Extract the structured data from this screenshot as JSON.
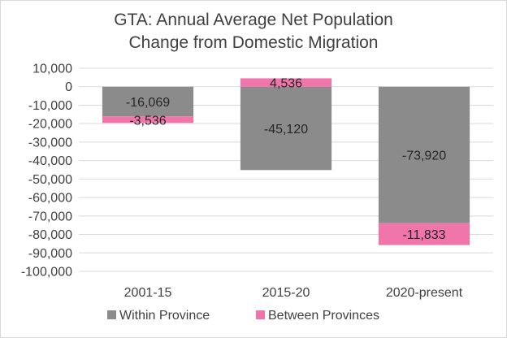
{
  "chart_data": {
    "type": "bar",
    "stacked": true,
    "title": "GTA: Annual Average Net Population Change from Domestic Migration",
    "title_lines": [
      "GTA: Annual Average Net Population",
      "Change from Domestic Migration"
    ],
    "categories": [
      "2001-15",
      "2015-20",
      "2020-present"
    ],
    "series": [
      {
        "name": "Within Province",
        "values": [
          -16069,
          -45120,
          -73920
        ],
        "labels": [
          "-16,069",
          "-45,120",
          "-73,920"
        ],
        "color": "#8c8b8b"
      },
      {
        "name": "Between Provinces",
        "values": [
          -3536,
          4536,
          -11833
        ],
        "labels": [
          "-3,536",
          "4,536",
          "-11,833"
        ],
        "color": "#f075aa"
      }
    ],
    "ylim": [
      -100000,
      10000
    ],
    "yticks": [
      10000,
      0,
      -10000,
      -20000,
      -30000,
      -40000,
      -50000,
      -60000,
      -70000,
      -80000,
      -90000,
      -100000
    ],
    "ytick_labels": [
      "10,000",
      "0",
      "-10,000",
      "-20,000",
      "-30,000",
      "-40,000",
      "-50,000",
      "-60,000",
      "-70,000",
      "-80,000",
      "-90,000",
      "-100,000"
    ],
    "xlabel": "",
    "ylabel": "",
    "grid": true,
    "legend_position": "bottom"
  }
}
